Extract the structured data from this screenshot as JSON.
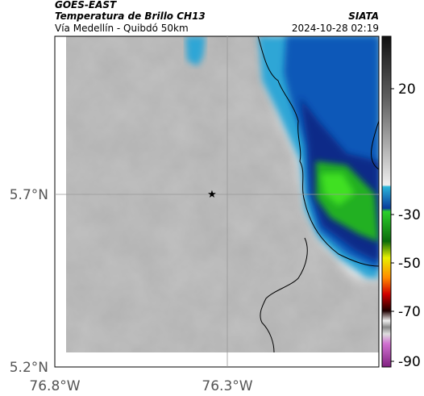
{
  "header": {
    "satellite": "GOES-EAST",
    "product": "Temperatura de Brillo CH13",
    "subtitle": "Vía Medellín - Quibdó 50km",
    "source": "SIATA",
    "datetime": "2024-10-28 02:19"
  },
  "map": {
    "lat_labels": [
      "5.7°N",
      "5.2°N"
    ],
    "lon_labels": [
      "76.8°W",
      "76.3°W"
    ]
  },
  "colorbar": {
    "ticks": [
      20,
      -30,
      -50,
      -70,
      -90
    ]
  }
}
